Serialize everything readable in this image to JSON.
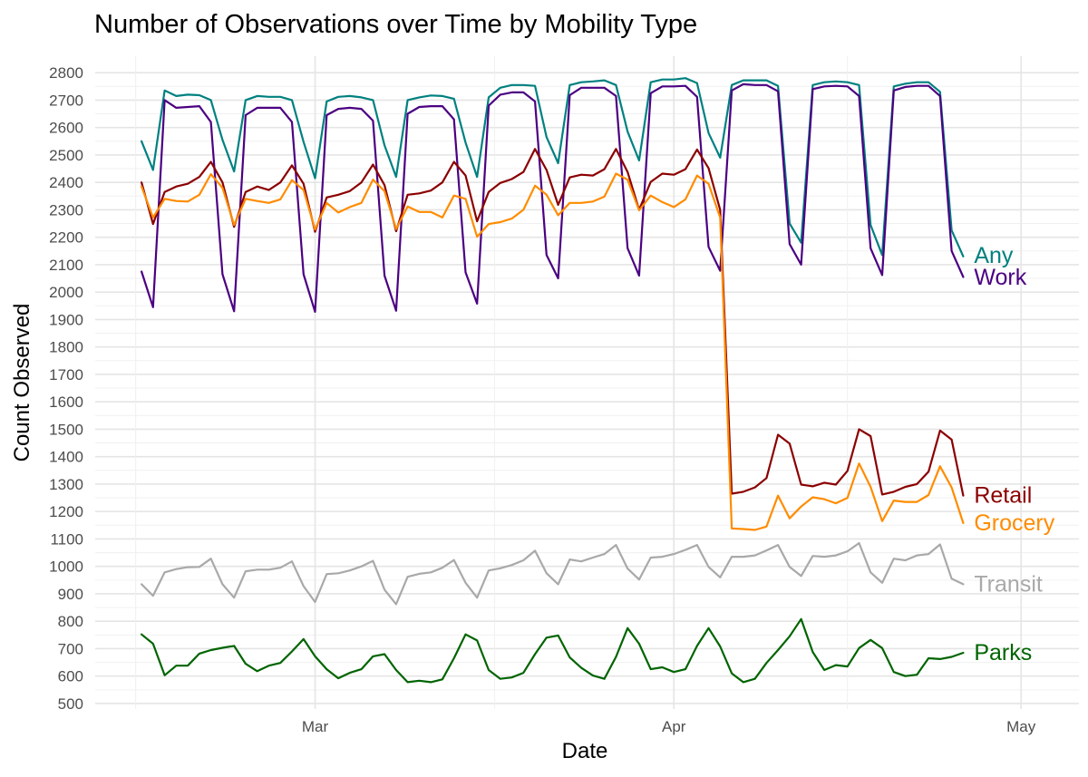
{
  "chart_data": {
    "type": "line",
    "title": "Number of Observations over Time by Mobility Type",
    "xlabel": "Date",
    "ylabel": "Count Observed",
    "ylim": [
      480,
      2860
    ],
    "yticks": [
      500,
      600,
      700,
      800,
      900,
      1000,
      1100,
      1200,
      1300,
      1400,
      1500,
      1600,
      1700,
      1800,
      1900,
      2000,
      2100,
      2200,
      2300,
      2400,
      2500,
      2600,
      2700,
      2800
    ],
    "xticks": [
      {
        "label": "Mar",
        "date": "2020-03-01"
      },
      {
        "label": "Apr",
        "date": "2020-04-01"
      },
      {
        "label": "May",
        "date": "2020-05-01"
      }
    ],
    "x_start": "2020-02-15",
    "x_end": "2020-04-26",
    "xlim_days": [
      -4,
      81
    ],
    "grid": true,
    "legend": "direct labels at line ends (right)",
    "series": [
      {
        "name": "Any",
        "color": "#008080",
        "values": [
          2550,
          2445,
          2735,
          2715,
          2720,
          2718,
          2700,
          2555,
          2440,
          2700,
          2715,
          2712,
          2712,
          2700,
          2548,
          2415,
          2695,
          2712,
          2715,
          2710,
          2700,
          2535,
          2420,
          2700,
          2710,
          2717,
          2715,
          2705,
          2545,
          2420,
          2710,
          2745,
          2755,
          2755,
          2752,
          2565,
          2470,
          2755,
          2765,
          2768,
          2772,
          2755,
          2585,
          2480,
          2765,
          2775,
          2775,
          2780,
          2762,
          2580,
          2490,
          2755,
          2772,
          2772,
          2772,
          2752,
          2250,
          2180,
          2755,
          2765,
          2768,
          2765,
          2755,
          2245,
          2135,
          2750,
          2760,
          2765,
          2765,
          2730,
          2225,
          2130
        ]
      },
      {
        "name": "Work",
        "color": "#4b0082",
        "values": [
          2075,
          1945,
          2700,
          2672,
          2675,
          2678,
          2620,
          2065,
          1930,
          2645,
          2672,
          2672,
          2672,
          2620,
          2065,
          1928,
          2645,
          2668,
          2672,
          2668,
          2625,
          2060,
          1932,
          2650,
          2675,
          2678,
          2678,
          2630,
          2072,
          1958,
          2680,
          2720,
          2728,
          2728,
          2695,
          2135,
          2050,
          2718,
          2745,
          2745,
          2745,
          2715,
          2160,
          2060,
          2725,
          2750,
          2750,
          2752,
          2712,
          2165,
          2078,
          2735,
          2758,
          2755,
          2755,
          2732,
          2175,
          2100,
          2740,
          2750,
          2752,
          2750,
          2715,
          2160,
          2062,
          2735,
          2748,
          2752,
          2752,
          2715,
          2150,
          2055
        ]
      },
      {
        "name": "Retail",
        "color": "#8b0000",
        "values": [
          2400,
          2248,
          2365,
          2385,
          2395,
          2420,
          2475,
          2400,
          2238,
          2365,
          2385,
          2372,
          2400,
          2462,
          2395,
          2220,
          2345,
          2355,
          2368,
          2400,
          2465,
          2390,
          2222,
          2355,
          2360,
          2370,
          2400,
          2475,
          2425,
          2258,
          2365,
          2398,
          2412,
          2438,
          2522,
          2445,
          2318,
          2418,
          2428,
          2425,
          2448,
          2522,
          2438,
          2300,
          2402,
          2432,
          2428,
          2448,
          2520,
          2452,
          2300,
          1265,
          1272,
          1288,
          1322,
          1480,
          1448,
          1298,
          1292,
          1305,
          1298,
          1348,
          1500,
          1475,
          1262,
          1272,
          1290,
          1300,
          1345,
          1495,
          1462,
          1258
        ]
      },
      {
        "name": "Grocery",
        "color": "#ff8c00",
        "values": [
          2385,
          2272,
          2340,
          2332,
          2330,
          2355,
          2430,
          2380,
          2245,
          2340,
          2332,
          2325,
          2338,
          2408,
          2372,
          2228,
          2325,
          2290,
          2310,
          2325,
          2410,
          2368,
          2230,
          2312,
          2292,
          2292,
          2272,
          2352,
          2340,
          2202,
          2248,
          2255,
          2268,
          2300,
          2388,
          2355,
          2280,
          2325,
          2325,
          2330,
          2348,
          2432,
          2410,
          2298,
          2352,
          2328,
          2310,
          2338,
          2425,
          2395,
          2272,
          1138,
          1136,
          1133,
          1145,
          1258,
          1175,
          1218,
          1252,
          1245,
          1230,
          1250,
          1375,
          1290,
          1165,
          1240,
          1235,
          1235,
          1260,
          1365,
          1288,
          1158
        ]
      },
      {
        "name": "Transit",
        "color": "#a9a9a9",
        "values": [
          935,
          893,
          978,
          990,
          997,
          998,
          1028,
          935,
          886,
          982,
          988,
          988,
          995,
          1018,
          928,
          870,
          972,
          975,
          985,
          1000,
          1020,
          915,
          862,
          962,
          973,
          978,
          995,
          1023,
          940,
          886,
          985,
          993,
          1005,
          1022,
          1057,
          975,
          935,
          1025,
          1018,
          1032,
          1045,
          1078,
          992,
          952,
          1032,
          1035,
          1045,
          1060,
          1078,
          998,
          960,
          1035,
          1035,
          1040,
          1058,
          1078,
          998,
          965,
          1038,
          1035,
          1040,
          1055,
          1085,
          978,
          940,
          1028,
          1022,
          1040,
          1045,
          1080,
          955,
          935
        ]
      },
      {
        "name": "Parks",
        "color": "#006400",
        "values": [
          752,
          718,
          603,
          638,
          638,
          682,
          695,
          703,
          710,
          645,
          618,
          638,
          648,
          690,
          735,
          672,
          625,
          592,
          612,
          625,
          672,
          680,
          622,
          578,
          583,
          578,
          588,
          665,
          752,
          730,
          622,
          590,
          595,
          612,
          680,
          740,
          748,
          668,
          630,
          602,
          590,
          670,
          775,
          718,
          625,
          632,
          615,
          625,
          710,
          775,
          708,
          610,
          578,
          590,
          648,
          695,
          745,
          808,
          688,
          622,
          640,
          635,
          702,
          732,
          702,
          615,
          600,
          605,
          665,
          662,
          670,
          685
        ]
      }
    ]
  }
}
